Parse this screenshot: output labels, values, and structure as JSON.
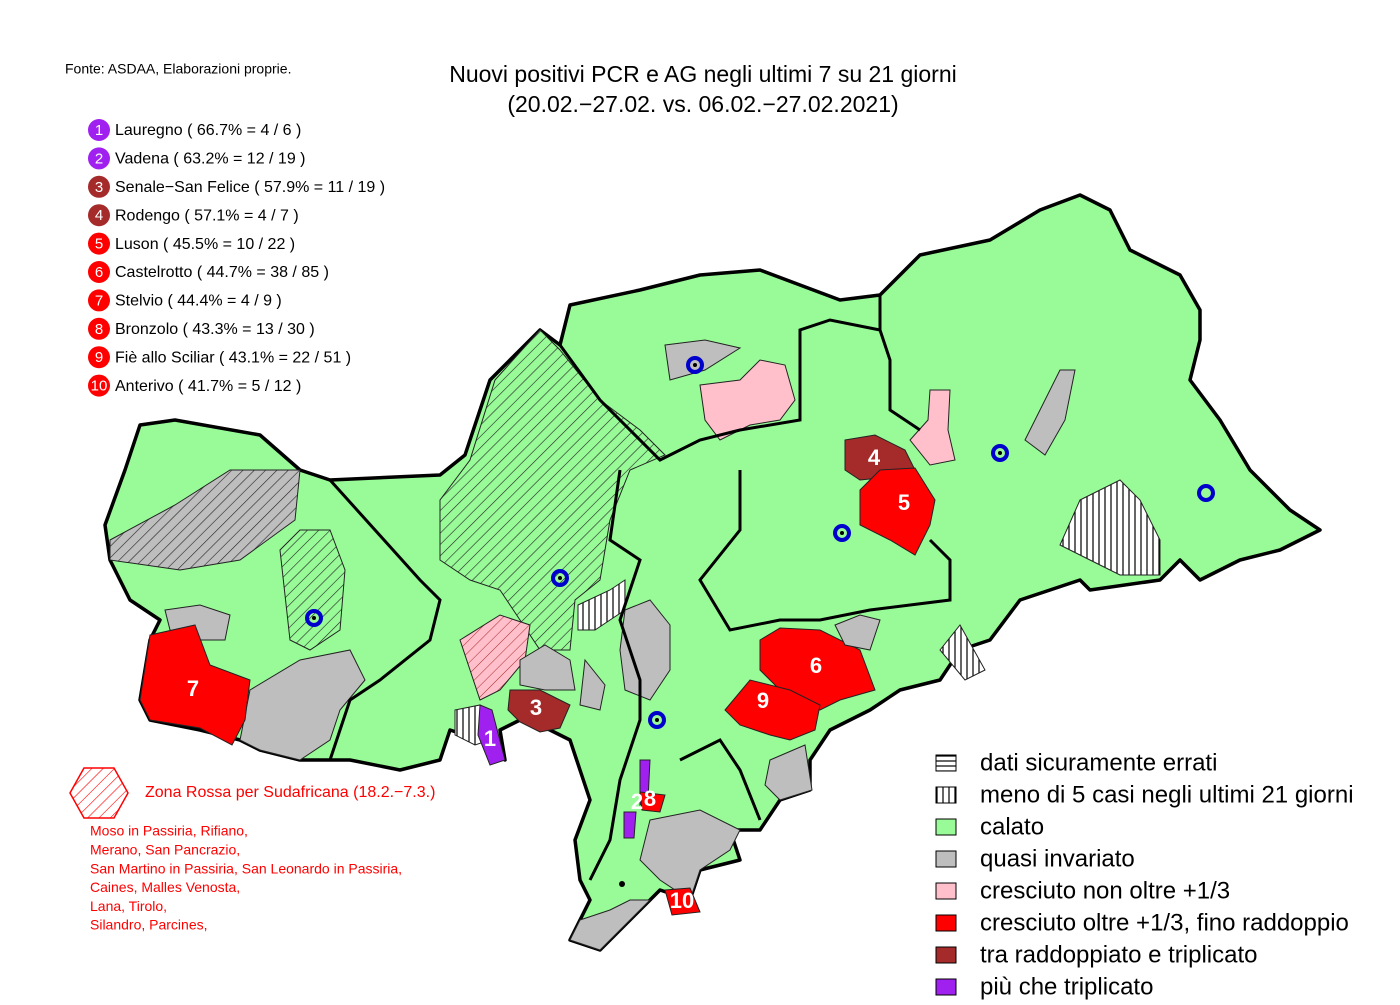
{
  "source": "Fonte: ASDAA, Elaborazioni proprie.",
  "title": [
    "Nuovi positivi PCR e AG negli ultimi 7 su 21 giorni",
    "(20.02.−27.02. vs. 06.02.−27.02.2021)"
  ],
  "ranking": [
    {
      "rank": "1",
      "label": "Lauregno ( 66.7% = 4 / 6 )",
      "color": "#a020f0"
    },
    {
      "rank": "2",
      "label": "Vadena ( 63.2% = 12 / 19 )",
      "color": "#a020f0"
    },
    {
      "rank": "3",
      "label": "Senale−San Felice ( 57.9% = 11 / 19 )",
      "color": "#a52a2a"
    },
    {
      "rank": "4",
      "label": "Rodengo ( 57.1% = 4 / 7 )",
      "color": "#a52a2a"
    },
    {
      "rank": "5",
      "label": "Luson ( 45.5% = 10 / 22 )",
      "color": "#ff0000"
    },
    {
      "rank": "6",
      "label": "Castelrotto ( 44.7% = 38 / 85 )",
      "color": "#ff0000"
    },
    {
      "rank": "7",
      "label": "Stelvio ( 44.4% = 4 / 9 )",
      "color": "#ff0000"
    },
    {
      "rank": "8",
      "label": "Bronzolo ( 43.3% = 13 / 30 )",
      "color": "#ff0000"
    },
    {
      "rank": "9",
      "label": "Fiè allo Sciliar ( 43.1% = 22 / 51 )",
      "color": "#ff0000"
    },
    {
      "rank": "10",
      "label": "Anterivo ( 41.7% = 5 / 12 )",
      "color": "#ff0000"
    }
  ],
  "red_zone": {
    "title": "Zona Rossa per Sudafricana (18.2.−7.3.)",
    "lines": [
      "Moso in Passiria,  Rifiano,",
      "Merano,  San Pancrazio,",
      "San Martino in Passiria,  San Leonardo in Passiria,",
      "Caines,  Malles Venosta,",
      "Lana,  Tirolo,",
      "Silandro,  Parcines,"
    ]
  },
  "legend": [
    {
      "label": "dati sicuramente errati",
      "pattern": "horizontal",
      "color": "#ffffff"
    },
    {
      "label": "meno di 5 casi negli ultimi 21 giorni",
      "pattern": "vertical",
      "color": "#ffffff"
    },
    {
      "label": "calato",
      "color": "#98fb98"
    },
    {
      "label": "quasi invariato",
      "color": "#bebebe"
    },
    {
      "label": "cresciuto non oltre +1/3",
      "color": "#ffc0cb"
    },
    {
      "label": "cresciuto oltre +1/3, fino raddoppio",
      "color": "#ff0000"
    },
    {
      "label": "tra raddoppiato e triplicato",
      "color": "#a52a2a"
    },
    {
      "label": "più che triplicato",
      "color": "#a020f0"
    }
  ],
  "map_labels": [
    "1",
    "3",
    "4",
    "5",
    "6",
    "7",
    "9",
    "2",
    "8",
    "10"
  ]
}
